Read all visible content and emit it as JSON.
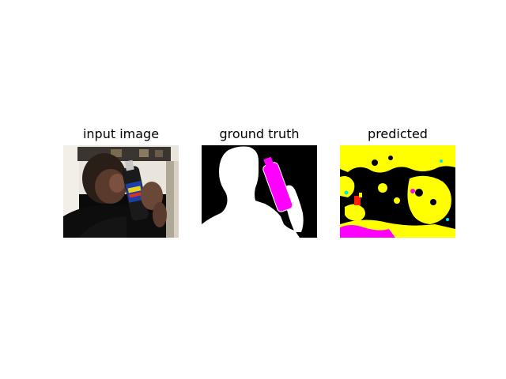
{
  "panels": [
    {
      "title": "input image"
    },
    {
      "title": "ground truth"
    },
    {
      "title": "predicted"
    }
  ],
  "colors": {
    "background": "#ffffff",
    "mask_background": "#000000",
    "mask_person": "#ffffff",
    "mask_bottle": "#ff00ff",
    "pred_yellow": "#ffff00",
    "pred_magenta": "#ff00ff",
    "pred_cyan": "#00e5e5",
    "pred_red": "#ff2000"
  }
}
